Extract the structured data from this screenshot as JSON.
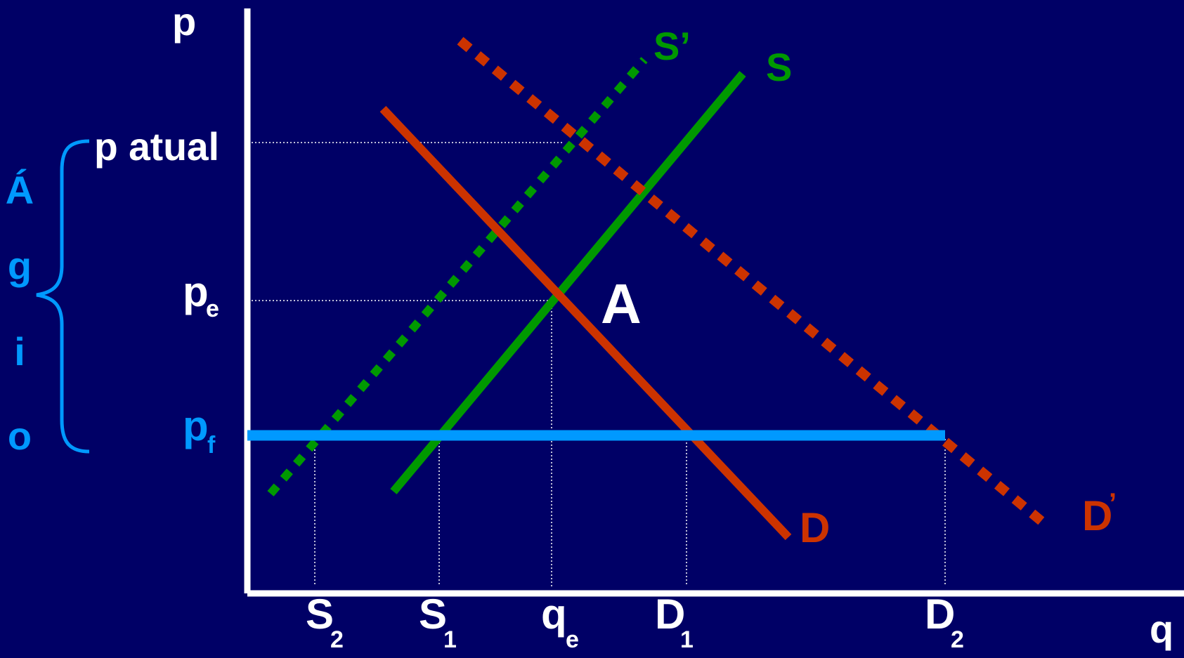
{
  "axes": {
    "y_label": "p",
    "x_label": "q"
  },
  "price_labels": {
    "current": "p atual",
    "equilibrium_main": "p",
    "equilibrium_sub": "e",
    "floor_main": "p",
    "floor_sub": "f"
  },
  "quantity_labels": {
    "s2_main": "S",
    "s2_sub": "2",
    "s1_main": "S",
    "s1_sub": "1",
    "qe_main": "q",
    "qe_sub": "e",
    "d1_main": "D",
    "d1_sub": "1",
    "d2_main": "D",
    "d2_sub": "2"
  },
  "curve_labels": {
    "supply": "S",
    "supply_shifted": "S’",
    "demand": "D",
    "demand_shifted_main": "D",
    "demand_shifted_mark": "’"
  },
  "point_label": "A",
  "agio_letters": [
    "Á",
    "g",
    "i",
    "o"
  ],
  "colors": {
    "background": "#000066",
    "axis": "#ffffff",
    "supply": "#009900",
    "demand": "#cc3300",
    "price_line": "#0099ff",
    "agio": "#0099ff",
    "text": "#ffffff"
  }
}
